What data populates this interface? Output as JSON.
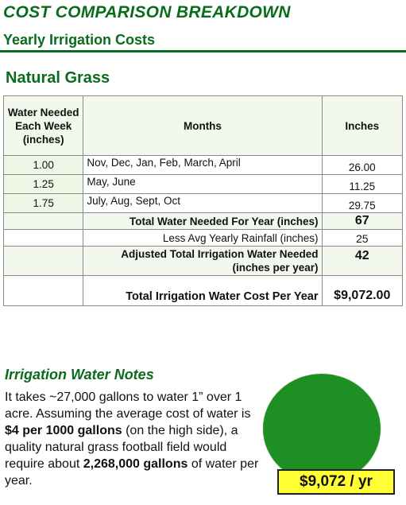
{
  "header": {
    "title": "COST COMPARISON BREAKDOWN",
    "subtitle": "Yearly Irrigation Costs"
  },
  "section": {
    "title": "Natural Grass"
  },
  "table": {
    "columns": {
      "water": "Water Needed Each Week (inches)",
      "months": "Months",
      "inches": "Inches"
    },
    "rows": [
      {
        "rate": "1.00",
        "months": "Nov, Dec, Jan, Feb, March, April",
        "inches": "26.00"
      },
      {
        "rate": "1.25",
        "months": "May, June",
        "inches": "11.25"
      },
      {
        "rate": "1.75",
        "months": "July, Aug, Sept, Oct",
        "inches": "29.75"
      }
    ],
    "total_label": "Total Water Needed For Year (inches)",
    "total_value": "67",
    "rainfall_label": "Less Avg Yearly Rainfall (inches)",
    "rainfall_value": "25",
    "adjusted_label": "Adjusted Total Irrigation Water Needed (inches per year)",
    "adjusted_value": "42",
    "cost_label": "Total Irrigation Water Cost Per Year",
    "cost_value": "$9,072.00"
  },
  "notes": {
    "title": "Irrigation Water Notes",
    "text_1": "It takes ~27,000 gallons to water 1” over 1 acre. Assuming the average cost of water is ",
    "bold_1": "$4 per 1000 gallons",
    "text_2": " (on the high side), a quality natural grass football field would require about ",
    "bold_2": "2,268,000 gallons",
    "text_3": " of water per year."
  },
  "badge": {
    "label": "$9,072 / yr"
  },
  "colors": {
    "heading_green": "#0b6b1d",
    "circle_green": "#1e8f23",
    "badge_yellow": "#ffff33"
  }
}
